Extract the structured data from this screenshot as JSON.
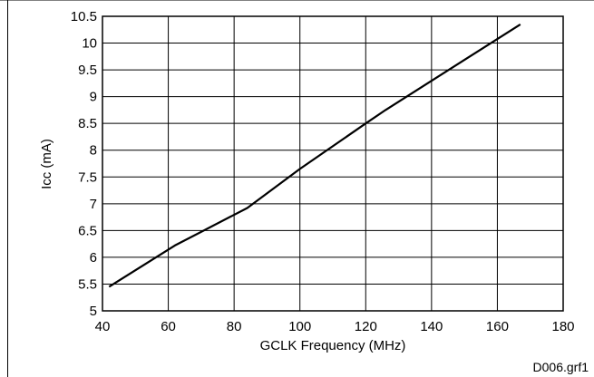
{
  "chart_data": {
    "type": "line",
    "title": "",
    "xlabel": "GCLK Frequency (MHz)",
    "ylabel": "Icc (mA)",
    "xlim": [
      40,
      180
    ],
    "ylim": [
      5,
      10.5
    ],
    "xticks": [
      40,
      60,
      80,
      100,
      120,
      140,
      160,
      180
    ],
    "yticks": [
      5,
      5.5,
      6,
      6.5,
      7,
      7.5,
      8,
      8.5,
      9,
      9.5,
      10,
      10.5
    ],
    "grid": true,
    "legend": "none",
    "series": [
      {
        "x": [
          42,
          62,
          84,
          100,
          120,
          126,
          167
        ],
        "y": [
          5.45,
          6.22,
          6.92,
          7.65,
          8.5,
          8.75,
          10.35
        ]
      }
    ]
  },
  "figure_id": "D006.grf1",
  "colors": {
    "line": "#000000",
    "grid": "#000000",
    "background": "#ffffff"
  }
}
